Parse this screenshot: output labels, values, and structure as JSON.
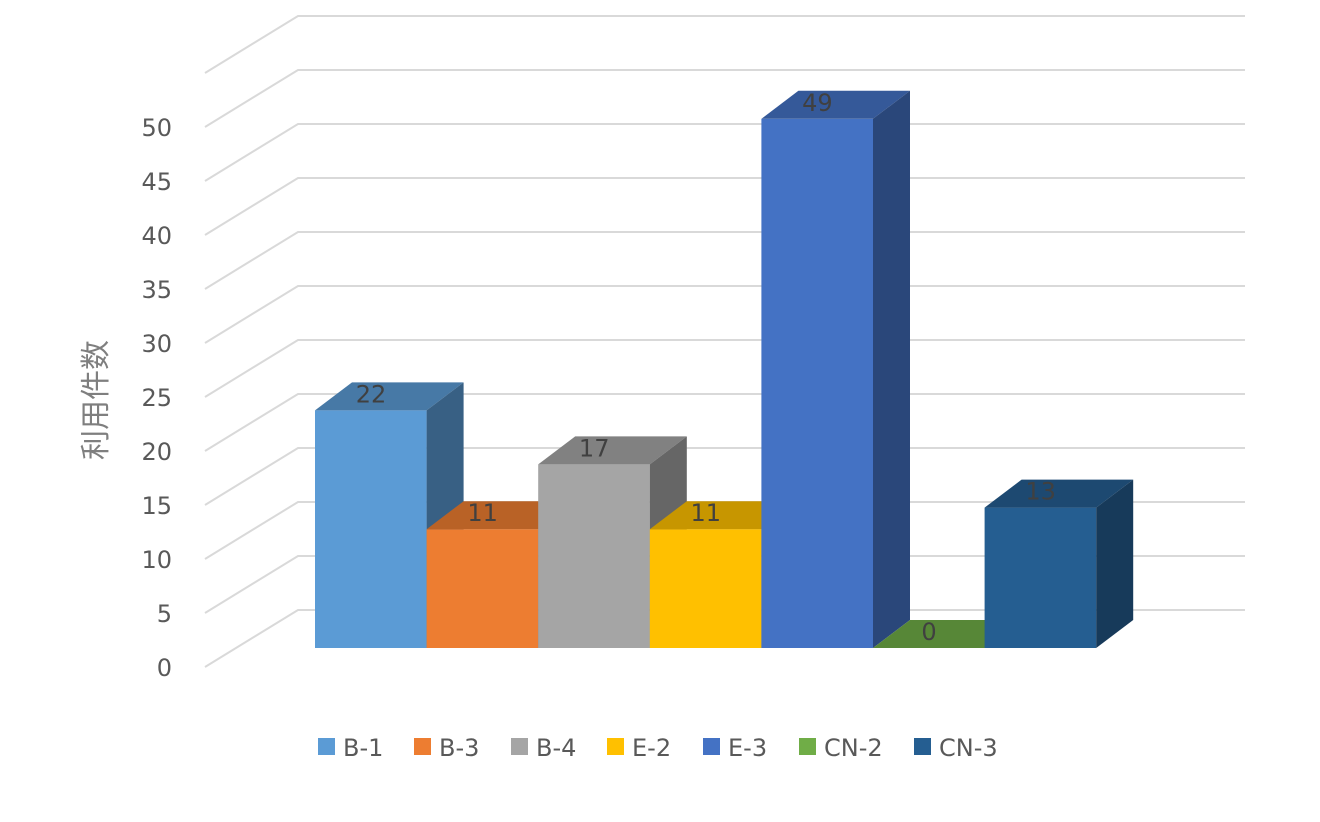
{
  "chart_data": {
    "type": "bar",
    "style": "3d-column",
    "categories": [
      "B-1",
      "B-3",
      "B-4",
      "E-2",
      "E-3",
      "CN-2",
      "CN-3"
    ],
    "values": [
      22,
      11,
      17,
      11,
      49,
      0,
      13
    ],
    "data_labels": [
      "22",
      "11",
      "17",
      "11",
      "49",
      "0",
      "13"
    ],
    "colors": [
      "#5B9BD5",
      "#ED7D31",
      "#A5A5A5",
      "#FFC000",
      "#4472C4",
      "#70AD47",
      "#255E91"
    ],
    "title": "",
    "xlabel": "",
    "ylabel": "利用件数",
    "ylim": [
      0,
      55
    ],
    "yticks": [
      0,
      5,
      10,
      15,
      20,
      25,
      30,
      35,
      40,
      45,
      50
    ],
    "grid": true,
    "legend": "bottom"
  }
}
